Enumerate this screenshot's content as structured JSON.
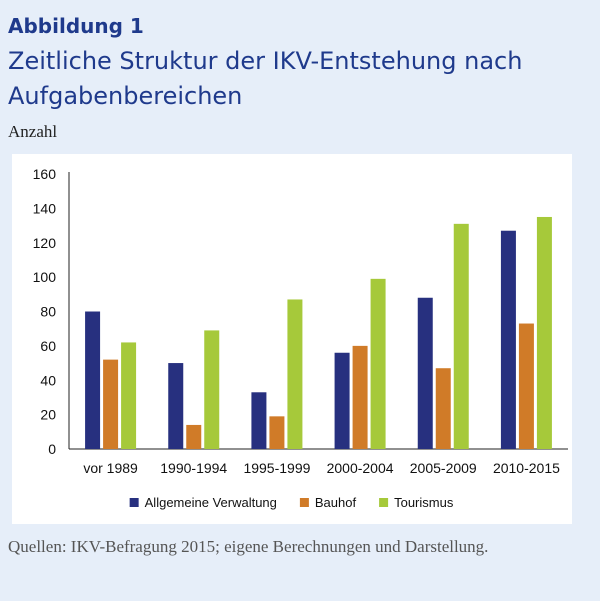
{
  "header": {
    "label": "Abbildung 1",
    "title": "Zeitliche Struktur der IKV-Entstehung nach Aufgabenbereichen",
    "unit": "Anzahl"
  },
  "source": "Quellen: IKV-Befragung 2015; eigene Berechnungen und Darstellung.",
  "chart_data": {
    "type": "bar",
    "title": "Zeitliche Struktur der IKV-Entstehung nach Aufgabenbereichen",
    "xlabel": "",
    "ylabel": "Anzahl",
    "ylim": [
      0,
      160
    ],
    "yticks": [
      0,
      20,
      40,
      60,
      80,
      100,
      120,
      140,
      160
    ],
    "grid": false,
    "legend": "bottom",
    "categories": [
      "vor 1989",
      "1990-1994",
      "1995-1999",
      "2000-2004",
      "2005-2009",
      "2010-2015"
    ],
    "series": [
      {
        "name": "Allgemeine Verwaltung",
        "color": "#27307f",
        "values": [
          80,
          50,
          33,
          56,
          88,
          127
        ]
      },
      {
        "name": "Bauhof",
        "color": "#d07b28",
        "values": [
          52,
          14,
          19,
          60,
          47,
          73
        ]
      },
      {
        "name": "Tourismus",
        "color": "#a6c93a",
        "values": [
          62,
          69,
          87,
          99,
          131,
          135
        ]
      }
    ]
  }
}
